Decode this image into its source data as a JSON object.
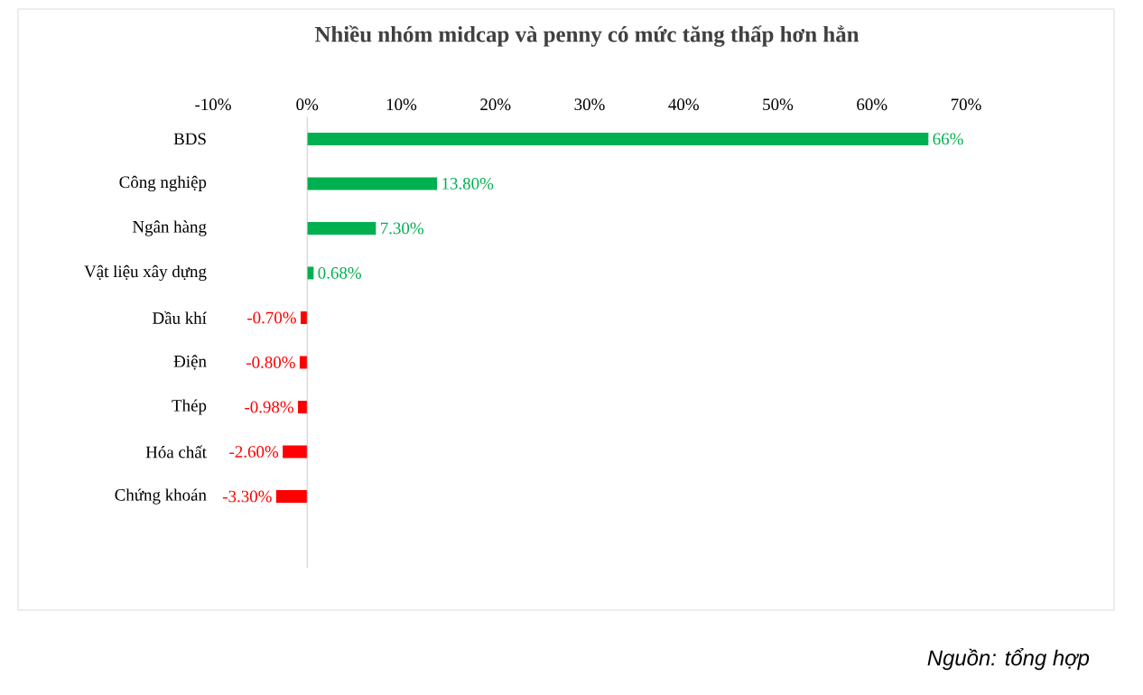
{
  "chart_data": {
    "type": "bar",
    "orientation": "horizontal",
    "title": "Nhiều nhóm midcap và penny có mức tăng thấp hơn hẳn",
    "categories": [
      "BDS",
      "Công nghiệp",
      "Ngân hàng",
      "Vật liệu xây  dựng",
      "Dầu khí",
      "Điện",
      "Thép",
      "Hóa chất",
      "Chứng khoán"
    ],
    "values": [
      66,
      13.8,
      7.3,
      0.68,
      -0.7,
      -0.8,
      -0.98,
      -2.6,
      -3.3
    ],
    "colors": [
      "#00b050",
      "#00b050",
      "#00b050",
      "#00b050",
      "#ff0000",
      "#ff0000",
      "#ff0000",
      "#ff0000",
      "#ff0000"
    ],
    "value_labels": [
      "66%",
      "13.80%",
      "7.30%",
      "0.68%",
      "-0.70%",
      "-0.80%",
      "-0.98%",
      "-2.60%",
      "-3.30%"
    ],
    "xlim": [
      -10,
      70
    ],
    "xticks": [
      {
        "value": -10,
        "label": "-10%"
      },
      {
        "value": 0,
        "label": "0%"
      },
      {
        "value": 10,
        "label": "10%"
      },
      {
        "value": 20,
        "label": "20%"
      },
      {
        "value": 30,
        "label": "30%"
      },
      {
        "value": 40,
        "label": "40%"
      },
      {
        "value": 50,
        "label": "50%"
      },
      {
        "value": 60,
        "label": "60%"
      },
      {
        "value": 70,
        "label": "70%"
      }
    ],
    "annotations": [
      "Nguồn: tổng hợp"
    ]
  }
}
